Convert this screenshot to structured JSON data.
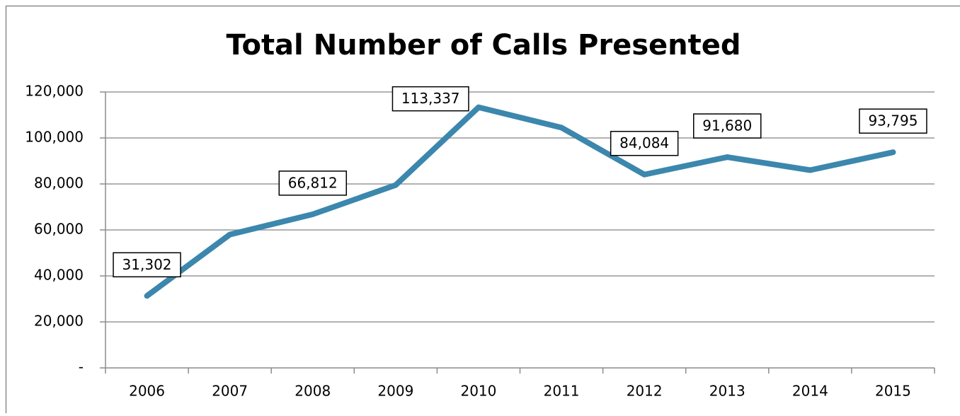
{
  "chart_data": {
    "type": "line",
    "title": "Total Number of Calls Presented",
    "categories": [
      "2006",
      "2007",
      "2008",
      "2009",
      "2010",
      "2011",
      "2012",
      "2013",
      "2014",
      "2015"
    ],
    "series": [
      {
        "name": "Calls Presented",
        "color": "#3c87ad",
        "values": [
          31302,
          58000,
          66812,
          79500,
          113337,
          104500,
          84084,
          91680,
          86000,
          93795
        ],
        "value_labels": [
          "31,302",
          null,
          "66,812",
          null,
          "113,337",
          null,
          "84,084",
          "91,680",
          null,
          "93,795"
        ]
      }
    ],
    "ylim": [
      0,
      120000
    ],
    "yticks": [
      {
        "value": 0,
        "label": "-"
      },
      {
        "value": 20000,
        "label": "20,000"
      },
      {
        "value": 40000,
        "label": "40,000"
      },
      {
        "value": 60000,
        "label": "60,000"
      },
      {
        "value": 80000,
        "label": "80,000"
      },
      {
        "value": 100000,
        "label": "100,000"
      },
      {
        "value": 120000,
        "label": "120,000"
      }
    ],
    "grid": true
  }
}
